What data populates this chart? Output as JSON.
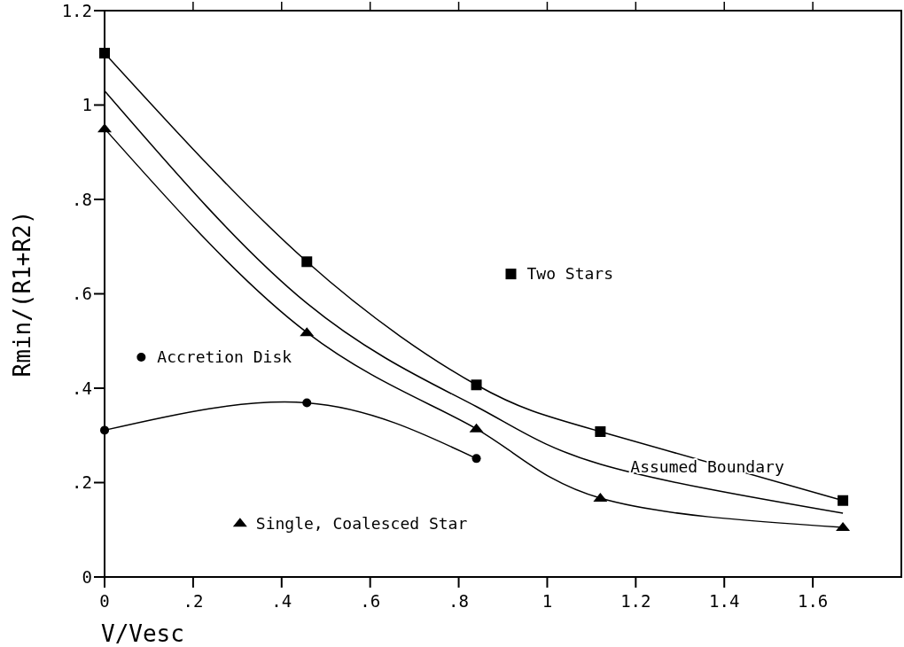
{
  "chart_data": {
    "type": "line",
    "xlabel": "V/Vesc",
    "ylabel": "Rmin/(R1+R2)",
    "xlim": [
      0,
      1.8
    ],
    "ylim": [
      0,
      1.2
    ],
    "xticks": [
      0,
      {
        "value": 0.2,
        "label": ".2"
      },
      {
        "value": 0.4,
        "label": ".4"
      },
      {
        "value": 0.6,
        "label": ".6"
      },
      {
        "value": 0.8,
        "label": ".8"
      },
      1,
      1.2,
      1.4,
      1.6
    ],
    "yticks": [
      0,
      {
        "value": 0.2,
        "label": ".2"
      },
      {
        "value": 0.4,
        "label": ".4"
      },
      {
        "value": 0.6,
        "label": ".6"
      },
      {
        "value": 0.8,
        "label": ".8"
      },
      1,
      1.2
    ],
    "tick_labels": [
      "x",
      "y"
    ],
    "grid": false,
    "legend": "bottom left",
    "line_style": "solid",
    "series": [
      {
        "name": "Two Stars",
        "color": "#000000",
        "marker": "square",
        "x": [
          0,
          0.457,
          0.84,
          1.12,
          1.668
        ],
        "values": [
          1.11,
          0.668,
          0.407,
          0.308,
          0.162
        ]
      },
      {
        "name": "Assumed Boundary",
        "color": "#000000",
        "marker": "none",
        "x": [
          0,
          0.457,
          0.84,
          1.12,
          1.668
        ],
        "values": [
          1.03,
          0.58,
          0.361,
          0.239,
          0.135
        ]
      },
      {
        "name": "Single, Coalesced Star",
        "color": "#000000",
        "marker": "triangle",
        "x": [
          0,
          0.457,
          0.84,
          1.12,
          1.668
        ],
        "values": [
          0.95,
          0.518,
          0.314,
          0.167,
          0.105
        ]
      },
      {
        "name": "Accretion Disk",
        "color": "#000000",
        "marker": "circle",
        "x": [
          0,
          0.457,
          0.84
        ],
        "values": [
          0.311,
          0.369,
          0.251
        ]
      }
    ]
  }
}
